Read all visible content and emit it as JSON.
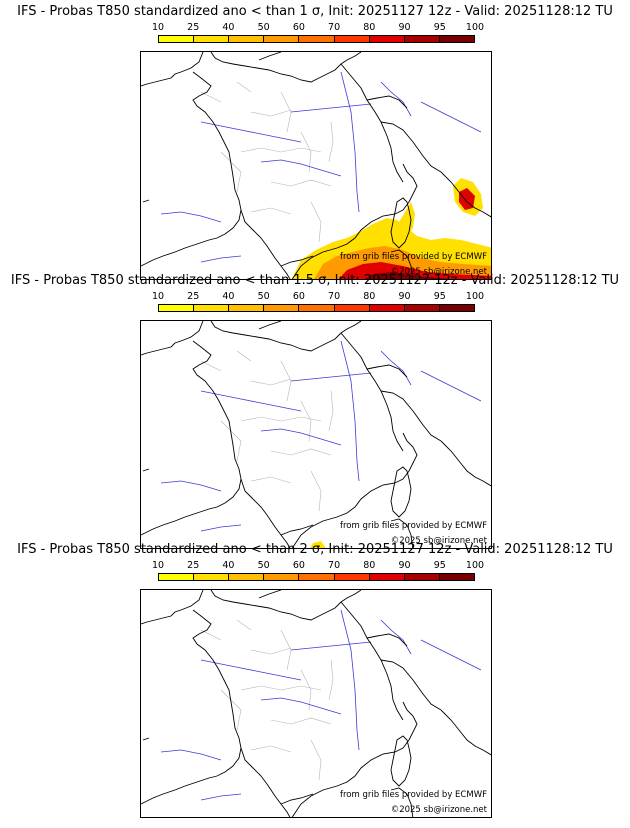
{
  "scale": {
    "labels": [
      "10",
      "25",
      "40",
      "50",
      "60",
      "70",
      "80",
      "90",
      "95",
      "100"
    ],
    "colors": [
      "#ffff00",
      "#ffe000",
      "#ffc000",
      "#ff9a00",
      "#ff7000",
      "#ff3800",
      "#e00000",
      "#a80000",
      "#780000"
    ]
  },
  "panels": [
    {
      "title": "IFS - Probas T850  standardized ano < than 1 σ, Init: 20251127 12z - Valid: 20251128:12 TU",
      "credit_grib": "from grib files provided by ECMWF",
      "credit_copy": "©2025 sb@irizone.net"
    },
    {
      "title": "IFS - Probas T850  standardized ano < than 1.5 σ, Init: 20251127 12z - Valid: 20251128:12 TU",
      "credit_grib": "from grib files provided by ECMWF",
      "credit_copy": "©2025 sb@irizone.net"
    },
    {
      "title": "IFS - Probas T850  standardized ano < than 2 σ, Init: 20251127 12z - Valid: 20251128:12 TU",
      "credit_grib": "from grib files provided by ECMWF",
      "credit_copy": "©2025 sb@irizone.net"
    }
  ]
}
